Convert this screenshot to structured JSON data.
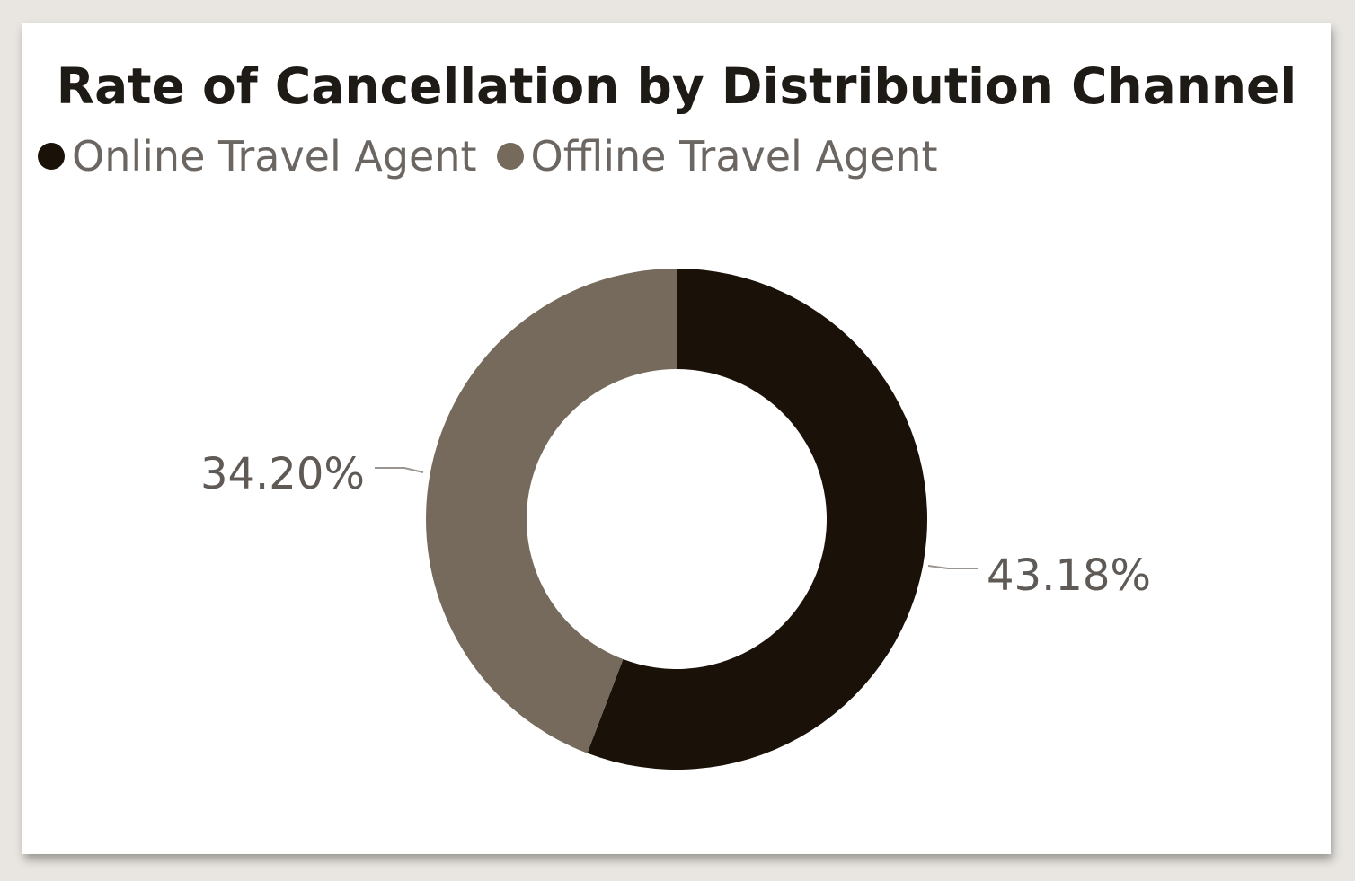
{
  "chart_data": {
    "type": "donut",
    "title": "Rate of Cancellation by Distribution Channel",
    "legend_position": "top-left",
    "series": [
      {
        "name": "Online Travel Agent",
        "value": 43.18,
        "label": "43.18%",
        "color": "#1a1109"
      },
      {
        "name": "Offline Travel Agent",
        "value": 34.2,
        "label": "34.20%",
        "color": "#766a5c"
      }
    ]
  }
}
